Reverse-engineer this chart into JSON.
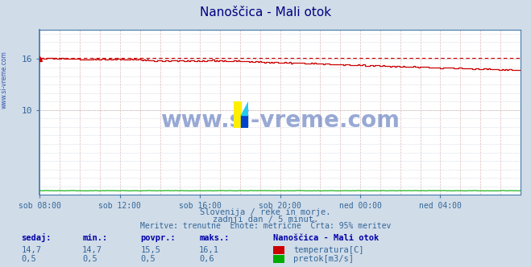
{
  "title": "Nanoščica - Mali otok",
  "title_color": "#000080",
  "bg_color": "#d0dce8",
  "plot_bg_color": "#ffffff",
  "grid_color": "#aabbcc",
  "vgrid_color": "#cc8888",
  "xlabel_ticks": [
    "sob 08:00",
    "sob 12:00",
    "sob 16:00",
    "sob 20:00",
    "ned 00:00",
    "ned 04:00"
  ],
  "xlim": [
    0,
    287
  ],
  "ylim": [
    0,
    19.5
  ],
  "temp_color": "#cc0000",
  "flow_color": "#00aa00",
  "dashed_color": "#cc0000",
  "dashed_value": 16.1,
  "watermark_text": "www.si-vreme.com",
  "watermark_color": "#3355aa",
  "subtitle1": "Slovenija / reke in morje.",
  "subtitle2": "zadnji dan / 5 minut.",
  "subtitle3": "Meritve: trenutne  Enote: metrične  Črta: 95% meritev",
  "subtitle_color": "#336699",
  "table_header_color": "#0000aa",
  "table_value_color": "#336699",
  "station_name": "Nanoščica - Mali otok",
  "label_temp": "temperatura[C]",
  "label_flow": "pretok[m3/s]",
  "left_label": "www.si-vreme.com",
  "arrow_color": "#cc0000",
  "spine_color": "#4477aa",
  "ytick_positions": [
    10,
    16
  ],
  "ytick_labels": [
    "10",
    "16"
  ]
}
